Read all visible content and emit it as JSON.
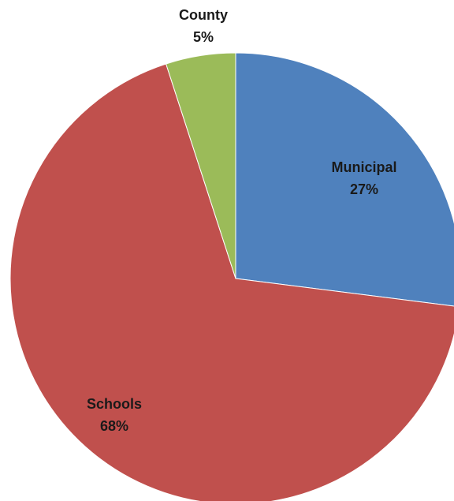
{
  "chart_data": {
    "type": "pie",
    "title": "",
    "start_angle_deg": 0,
    "direction": "clockwise",
    "legend": "none",
    "slices": [
      {
        "label": "Municipal",
        "value": 27,
        "display": "27%",
        "color": "#4f81bd"
      },
      {
        "label": "Schools",
        "value": 68,
        "display": "68%",
        "color": "#c0504d"
      },
      {
        "label": "County",
        "value": 5,
        "display": "5%",
        "color": "#9bbb59"
      }
    ]
  }
}
